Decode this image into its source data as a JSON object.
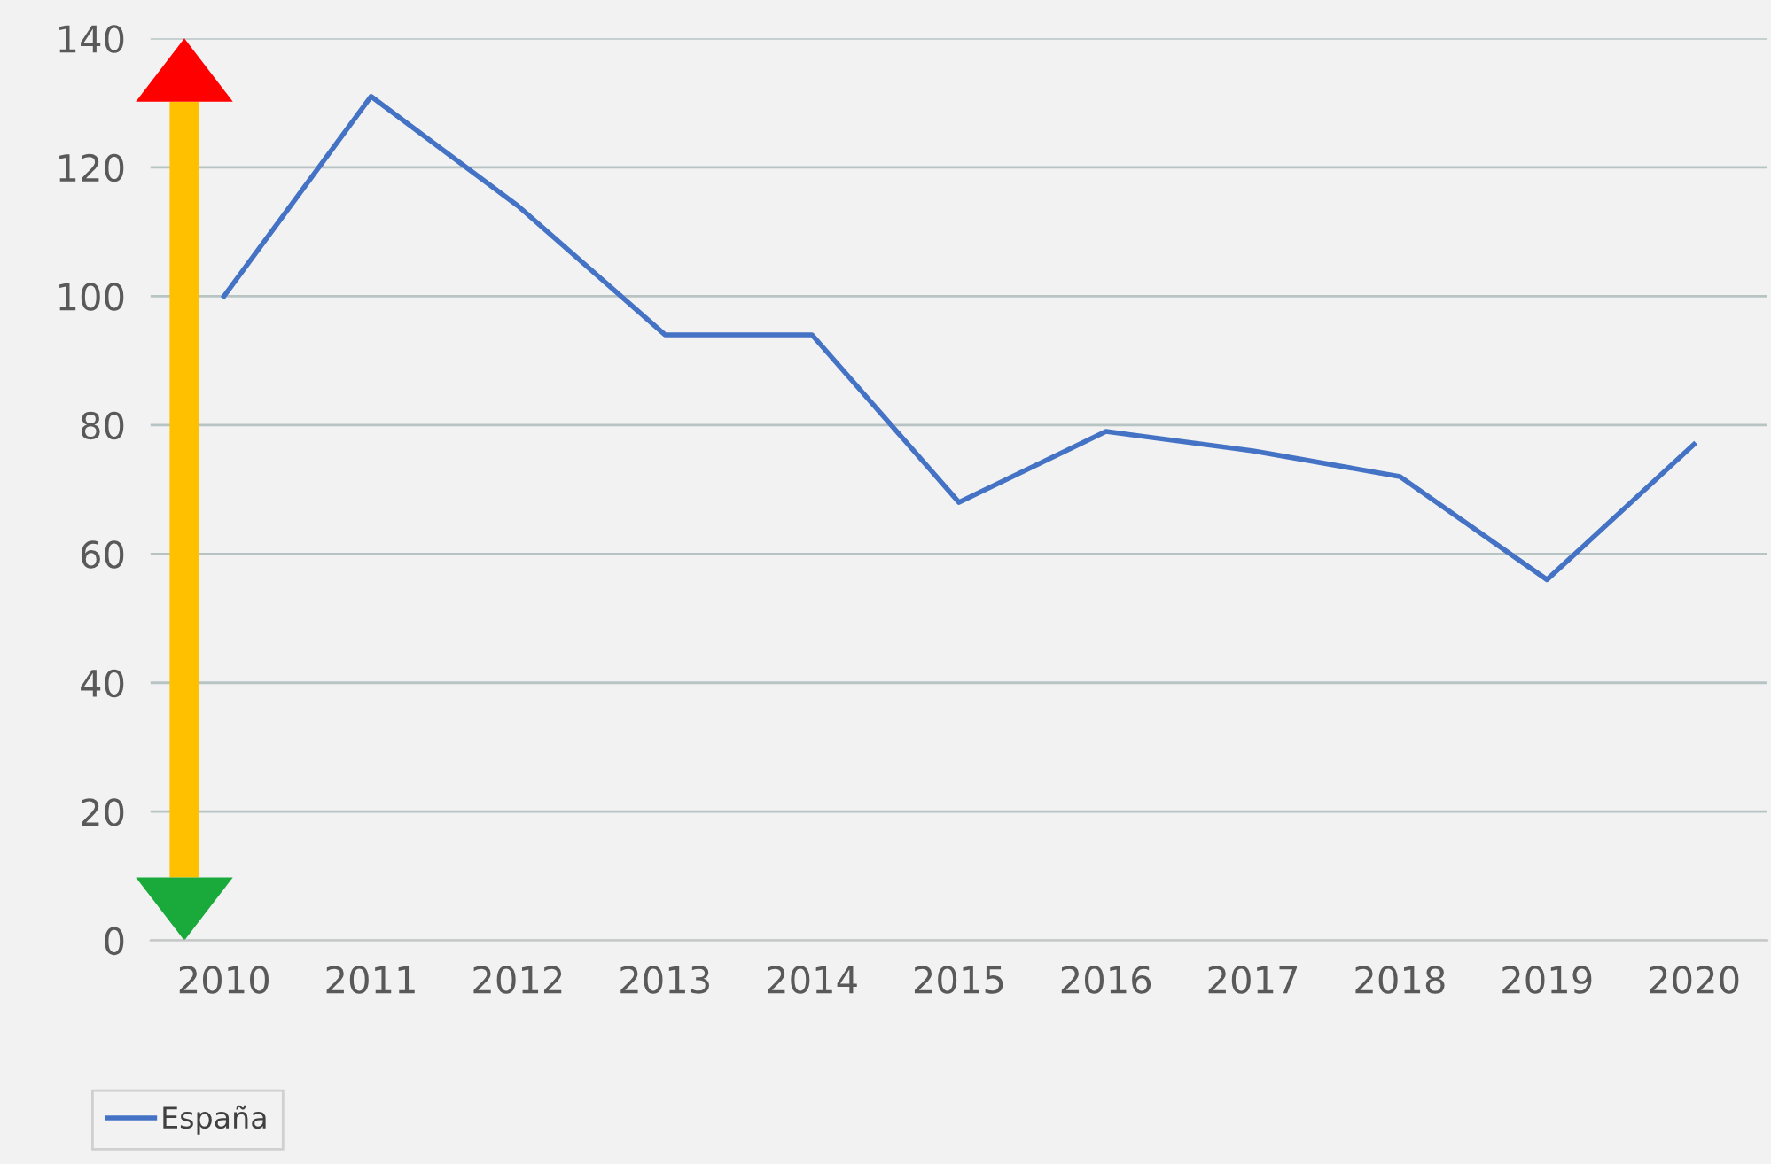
{
  "chart_data": {
    "type": "line",
    "categories": [
      "2010",
      "2011",
      "2012",
      "2013",
      "2014",
      "2015",
      "2016",
      "2017",
      "2018",
      "2019",
      "2020"
    ],
    "series": [
      {
        "name": "España",
        "color": "#4472c4",
        "values": [
          100,
          131,
          114,
          94,
          94,
          68,
          79,
          76,
          72,
          56,
          77
        ]
      }
    ],
    "ylim": [
      0,
      140
    ],
    "yticks": [
      0,
      20,
      40,
      60,
      80,
      100,
      120,
      140
    ],
    "grid": "y",
    "legend": "bottom left",
    "marker": "none",
    "line_style": "solid"
  }
}
